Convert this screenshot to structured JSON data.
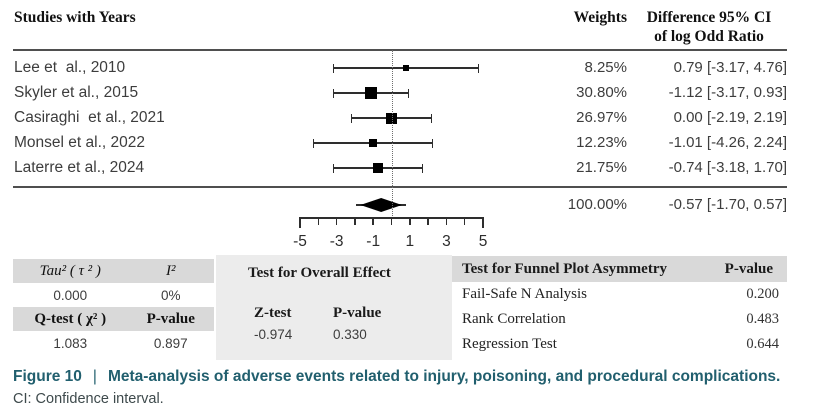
{
  "figure": {
    "caption": {
      "figure_label": "Figure 10",
      "separator": "|",
      "title": "Meta-analysis of adverse events related to injury, poisoning, and procedural complications.",
      "note": "CI: Confidence interval."
    },
    "colors": {
      "caption_accent": "#215f6e",
      "table_header_band": "#d9d9d9",
      "middle_table_bg": "#ececec",
      "marker_color": "#000000"
    }
  },
  "chart_data": {
    "type": "forest",
    "title": "",
    "effect_measure": "log Odd Ratio",
    "columns": {
      "studies": "Studies with Years",
      "weights": "Weights",
      "difference_line1": "Difference 95% CI",
      "difference_line2": "of log Odd Ratio"
    },
    "x_axis": {
      "min": -5,
      "max": 5,
      "tick_step": 1,
      "labeled_ticks": [
        -5,
        -3,
        -1,
        1,
        3,
        5
      ],
      "zero_line": 0,
      "grid": false
    },
    "studies": [
      {
        "label": "Lee et  al., 2010",
        "weight": "8.25%",
        "weight_pct": 8.25,
        "estimate": 0.79,
        "ci_low": -3.17,
        "ci_high": 4.76,
        "difference": "0.79 [-3.17, 4.76]"
      },
      {
        "label": "Skyler et al., 2015",
        "weight": "30.80%",
        "weight_pct": 30.8,
        "estimate": -1.12,
        "ci_low": -3.17,
        "ci_high": 0.93,
        "difference": "-1.12 [-3.17, 0.93]"
      },
      {
        "label": "Casiraghi  et al., 2021",
        "weight": "26.97%",
        "weight_pct": 26.97,
        "estimate": 0.0,
        "ci_low": -2.19,
        "ci_high": 2.19,
        "difference": "0.00 [-2.19, 2.19]"
      },
      {
        "label": "Monsel et al., 2022",
        "weight": "12.23%",
        "weight_pct": 12.23,
        "estimate": -1.01,
        "ci_low": -4.26,
        "ci_high": 2.24,
        "difference": "-1.01 [-4.26, 2.24]"
      },
      {
        "label": "Laterre et al., 2024",
        "weight": "21.75%",
        "weight_pct": 21.75,
        "estimate": -0.74,
        "ci_low": -3.18,
        "ci_high": 1.7,
        "difference": "-0.74 [-3.18, 1.70]"
      }
    ],
    "summary": {
      "weight": "100.00%",
      "weight_pct": 100.0,
      "estimate": -0.57,
      "ci_low": -1.7,
      "ci_high": 0.57,
      "difference": "-0.57 [-1.70, 0.57]"
    }
  },
  "stats": {
    "heterogeneity": {
      "tau_label": "Tau² ( τ ² )",
      "i2_label": "I²",
      "tau_value": "0.000",
      "i2_value": "0%",
      "qtest_label": "Q-test ( χ² )",
      "qtest_pvalue_label": "P-value",
      "qtest_value": "1.083",
      "qtest_pvalue": "0.897"
    },
    "overall_effect": {
      "title": "Test for Overall Effect",
      "ztest_label": "Z-test",
      "pvalue_label": "P-value",
      "ztest_value": "-0.974",
      "pvalue_value": "0.330"
    },
    "funnel": {
      "title": "Test for Funnel Plot Asymmetry",
      "pvalue_label": "P-value",
      "rows": [
        {
          "label": "Fail-Safe N Analysis",
          "value": "0.200"
        },
        {
          "label": "Rank Correlation",
          "value": "0.483"
        },
        {
          "label": "Regression Test",
          "value": "0.644"
        }
      ]
    }
  }
}
